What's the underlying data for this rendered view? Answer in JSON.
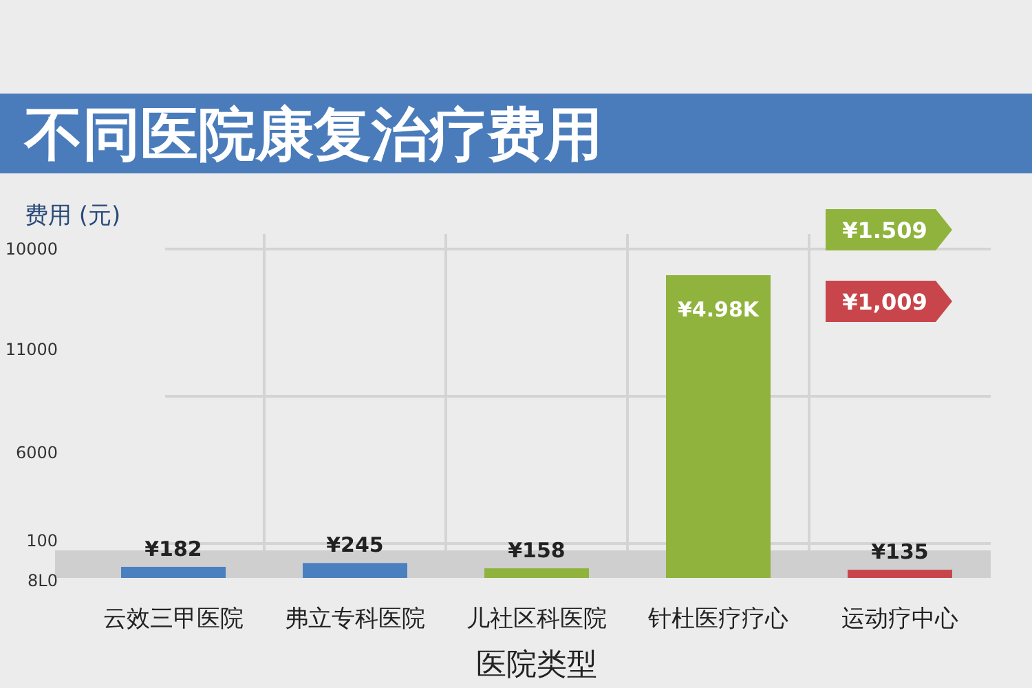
{
  "chart_data": {
    "type": "bar",
    "title": "不同医院康复治疗费用",
    "ylabel": "费用 (元)",
    "xlabel": "医院类型",
    "categories": [
      "云效三甲医院",
      "弗立专科医院",
      "儿社区科医院",
      "针杜医疗疗心",
      "运动疗中心"
    ],
    "values": [
      182,
      245,
      158,
      4980,
      135
    ],
    "colors": [
      "#4a80c0",
      "#4a80c0",
      "#8fb33c",
      "#8fb33c",
      "#c8464b"
    ],
    "value_labels": [
      "¥182",
      "¥245",
      "¥158",
      "¥4.98K",
      "¥135"
    ],
    "grid": true,
    "annotations": [
      "10000",
      "11000",
      "6000",
      "100",
      "8L0",
      "¥1.509",
      "¥1,009"
    ]
  }
}
